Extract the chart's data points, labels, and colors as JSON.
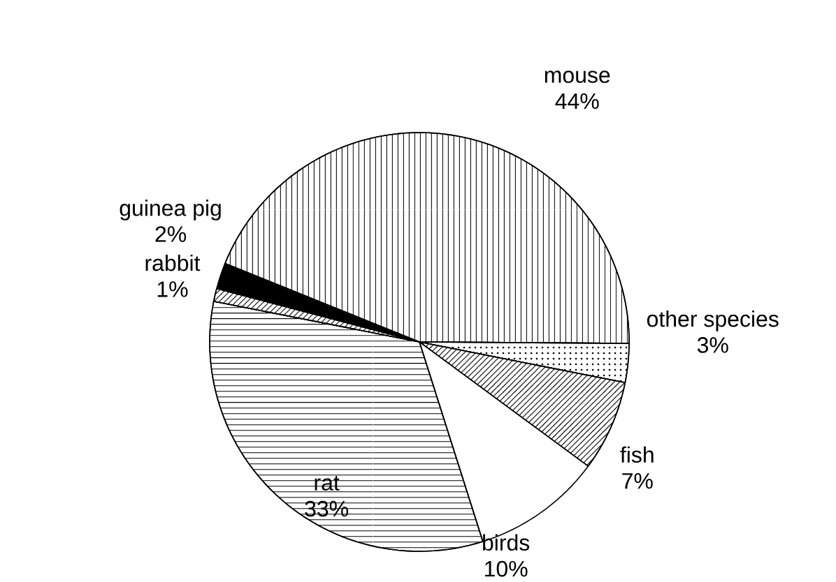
{
  "chart_data": {
    "type": "pie",
    "categories": [
      "mouse",
      "other species",
      "fish",
      "birds",
      "rat",
      "rabbit",
      "guinea pig"
    ],
    "values": [
      44,
      3,
      7,
      10,
      33,
      1,
      2
    ],
    "value_labels": [
      "44%",
      "3%",
      "7%",
      "10%",
      "33%",
      "1%",
      "2%"
    ],
    "colors": [
      "#ffffff",
      "#ffffff",
      "#ffffff",
      "#ffffff",
      "#ffffff",
      "#ffffff",
      "#000000"
    ]
  }
}
